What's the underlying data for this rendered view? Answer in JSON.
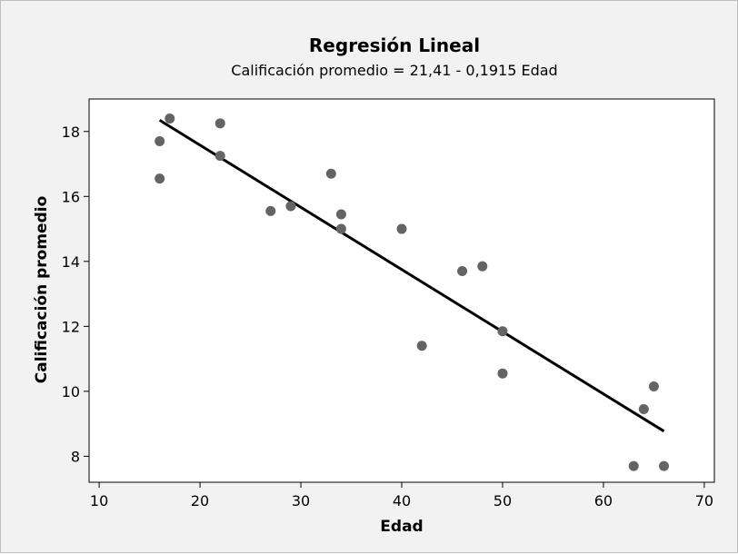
{
  "chart_data": {
    "type": "scatter",
    "title": "Regresión Lineal",
    "subtitle": "Calificación promedio =  21,41 - 0,1915 Edad",
    "xlabel": "Edad",
    "ylabel": "Calificación promedio",
    "xlim": [
      9,
      71
    ],
    "ylim": [
      7.2,
      19
    ],
    "xticks": [
      10,
      20,
      30,
      40,
      50,
      60,
      70
    ],
    "yticks": [
      8,
      10,
      12,
      14,
      16,
      18
    ],
    "grid": false,
    "point_color": "#646464",
    "line_color": "#000000",
    "points": [
      {
        "x": 16,
        "y": 17.7
      },
      {
        "x": 16,
        "y": 16.55
      },
      {
        "x": 17,
        "y": 18.4
      },
      {
        "x": 22,
        "y": 18.25
      },
      {
        "x": 22,
        "y": 17.25
      },
      {
        "x": 27,
        "y": 15.55
      },
      {
        "x": 29,
        "y": 15.7
      },
      {
        "x": 33,
        "y": 16.7
      },
      {
        "x": 34,
        "y": 15.45
      },
      {
        "x": 34,
        "y": 15.0
      },
      {
        "x": 40,
        "y": 15.0
      },
      {
        "x": 42,
        "y": 11.4
      },
      {
        "x": 46,
        "y": 13.7
      },
      {
        "x": 48,
        "y": 13.85
      },
      {
        "x": 50,
        "y": 11.85
      },
      {
        "x": 50,
        "y": 10.55
      },
      {
        "x": 63,
        "y": 7.7
      },
      {
        "x": 64,
        "y": 9.45
      },
      {
        "x": 65,
        "y": 10.15
      },
      {
        "x": 66,
        "y": 7.7
      }
    ],
    "regression": {
      "intercept": 21.41,
      "slope": -0.1915,
      "x_range": [
        16,
        66
      ]
    }
  }
}
